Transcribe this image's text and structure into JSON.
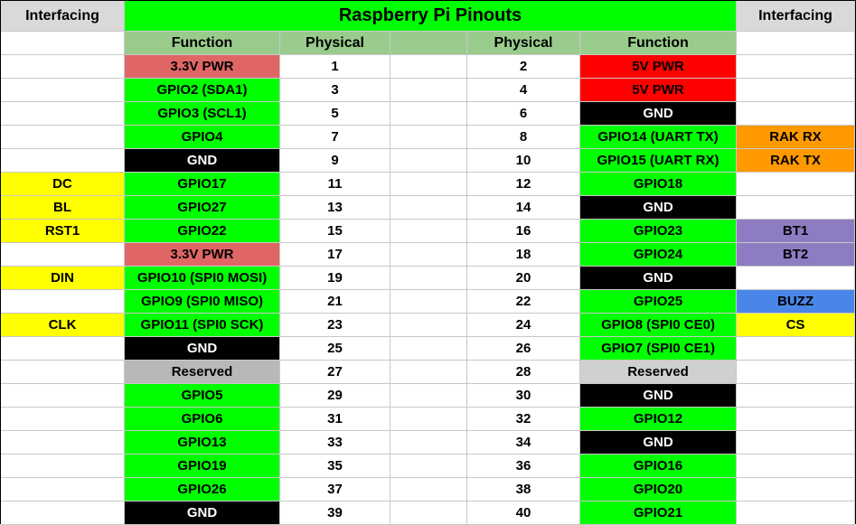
{
  "title": "Raspberry Pi Pinouts",
  "headers": {
    "left_interfacing": "Interfacing",
    "left_function": "Function",
    "left_physical": "Physical",
    "right_physical": "Physical",
    "right_function": "Function",
    "right_interfacing": "Interfacing"
  },
  "colors": {
    "green": "#00ff00",
    "header_green": "#99cc8c",
    "header_gray": "#d9d9d9",
    "pwr33": "#e06666",
    "pwr5": "#ff0000",
    "gnd": "#000000",
    "reserved_left": "#b8b8b8",
    "reserved_right": "#d0d0d0",
    "yellow": "#ffff00",
    "orange": "#ff9900",
    "purple": "#8e7cc3",
    "blue": "#4a86e8",
    "white": "#ffffff"
  },
  "rows": [
    {
      "li": "",
      "lf": "3.3V PWR",
      "lfc": "pwr33",
      "lp": "1",
      "rp": "2",
      "rf": "5V PWR",
      "rfc": "pwr5",
      "ri": "",
      "ric": "white"
    },
    {
      "li": "",
      "lf": "GPIO2 (SDA1)",
      "lfc": "green",
      "lp": "3",
      "rp": "4",
      "rf": "5V PWR",
      "rfc": "pwr5",
      "ri": "",
      "ric": "white"
    },
    {
      "li": "",
      "lf": "GPIO3 (SCL1)",
      "lfc": "green",
      "lp": "5",
      "rp": "6",
      "rf": "GND",
      "rfc": "gnd",
      "ri": "",
      "ric": "white"
    },
    {
      "li": "",
      "lf": "GPIO4",
      "lfc": "green",
      "lp": "7",
      "rp": "8",
      "rf": "GPIO14 (UART TX)",
      "rfc": "green",
      "ri": "RAK RX",
      "ric": "orange"
    },
    {
      "li": "",
      "lf": "GND",
      "lfc": "gnd",
      "lp": "9",
      "rp": "10",
      "rf": "GPIO15 (UART RX)",
      "rfc": "green",
      "ri": "RAK TX",
      "ric": "orange"
    },
    {
      "li": "DC",
      "lic": "yellow",
      "lf": "GPIO17",
      "lfc": "green",
      "lp": "11",
      "rp": "12",
      "rf": "GPIO18",
      "rfc": "green",
      "ri": "",
      "ric": "white"
    },
    {
      "li": "BL",
      "lic": "yellow",
      "lf": "GPIO27",
      "lfc": "green",
      "lp": "13",
      "rp": "14",
      "rf": "GND",
      "rfc": "gnd",
      "ri": "",
      "ric": "white"
    },
    {
      "li": "RST1",
      "lic": "yellow",
      "lf": "GPIO22",
      "lfc": "green",
      "lp": "15",
      "rp": "16",
      "rf": "GPIO23",
      "rfc": "green",
      "ri": "BT1",
      "ric": "purple"
    },
    {
      "li": "",
      "lf": "3.3V PWR",
      "lfc": "pwr33",
      "lp": "17",
      "rp": "18",
      "rf": "GPIO24",
      "rfc": "green",
      "ri": "BT2",
      "ric": "purple"
    },
    {
      "li": "DIN",
      "lic": "yellow",
      "lf": "GPIO10 (SPI0 MOSI)",
      "lfc": "green",
      "lp": "19",
      "rp": "20",
      "rf": "GND",
      "rfc": "gnd",
      "ri": "",
      "ric": "white"
    },
    {
      "li": "",
      "lf": "GPIO9 (SPI0 MISO)",
      "lfc": "green",
      "lp": "21",
      "rp": "22",
      "rf": "GPIO25",
      "rfc": "green",
      "ri": "BUZZ",
      "ric": "blue"
    },
    {
      "li": "CLK",
      "lic": "yellow",
      "lf": "GPIO11 (SPI0 SCK)",
      "lfc": "green",
      "lp": "23",
      "rp": "24",
      "rf": "GPIO8 (SPI0 CE0)",
      "rfc": "green",
      "ri": "CS",
      "ric": "yellow"
    },
    {
      "li": "",
      "lf": "GND",
      "lfc": "gnd",
      "lp": "25",
      "rp": "26",
      "rf": "GPIO7 (SPI0 CE1)",
      "rfc": "green",
      "ri": "",
      "ric": "white"
    },
    {
      "li": "",
      "lf": "Reserved",
      "lfc": "reserved_left",
      "lp": "27",
      "rp": "28",
      "rf": "Reserved",
      "rfc": "reserved_right",
      "ri": "",
      "ric": "white"
    },
    {
      "li": "",
      "lf": "GPIO5",
      "lfc": "green",
      "lp": "29",
      "rp": "30",
      "rf": "GND",
      "rfc": "gnd",
      "ri": "",
      "ric": "white"
    },
    {
      "li": "",
      "lf": "GPIO6",
      "lfc": "green",
      "lp": "31",
      "rp": "32",
      "rf": "GPIO12",
      "rfc": "green",
      "ri": "",
      "ric": "white"
    },
    {
      "li": "",
      "lf": "GPIO13",
      "lfc": "green",
      "lp": "33",
      "rp": "34",
      "rf": "GND",
      "rfc": "gnd",
      "ri": "",
      "ric": "white"
    },
    {
      "li": "",
      "lf": "GPIO19",
      "lfc": "green",
      "lp": "35",
      "rp": "36",
      "rf": "GPIO16",
      "rfc": "green",
      "ri": "",
      "ric": "white"
    },
    {
      "li": "",
      "lf": "GPIO26",
      "lfc": "green",
      "lp": "37",
      "rp": "38",
      "rf": "GPIO20",
      "rfc": "green",
      "ri": "",
      "ric": "white"
    },
    {
      "li": "",
      "lf": "GND",
      "lfc": "gnd",
      "lp": "39",
      "rp": "40",
      "rf": "GPIO21",
      "rfc": "green",
      "ri": "",
      "ric": "white"
    }
  ]
}
